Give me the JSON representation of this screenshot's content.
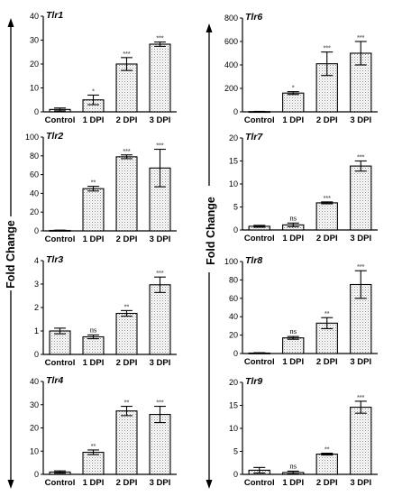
{
  "figure": {
    "side_labels": [
      "Fold Change",
      "Fold Change"
    ]
  },
  "chart_data": [
    {
      "type": "bar",
      "title": "Tlr1",
      "categories": [
        "Control",
        "1 DPI",
        "2 DPI",
        "3 DPI"
      ],
      "values": [
        1,
        5,
        20,
        28.3
      ],
      "errors": [
        0.6,
        2,
        2.7,
        0.9
      ],
      "significance": [
        "",
        "*",
        "***",
        "***"
      ],
      "ylim": [
        0,
        40
      ],
      "yticks": [
        0,
        10,
        20,
        30,
        40
      ]
    },
    {
      "type": "bar",
      "title": "Tlr2",
      "categories": [
        "Control",
        "1 DPI",
        "2 DPI",
        "3 DPI"
      ],
      "values": [
        0.5,
        45,
        79,
        67
      ],
      "errors": [
        0.3,
        2.5,
        2,
        20
      ],
      "significance": [
        "",
        "**",
        "***",
        "***"
      ],
      "ylim": [
        0,
        100
      ],
      "yticks": [
        0,
        20,
        40,
        60,
        80,
        100
      ]
    },
    {
      "type": "bar",
      "title": "Tlr3",
      "categories": [
        "Control",
        "1 DPI",
        "2 DPI",
        "3 DPI"
      ],
      "values": [
        1.0,
        0.75,
        1.75,
        2.97
      ],
      "errors": [
        0.12,
        0.08,
        0.12,
        0.33
      ],
      "significance": [
        "",
        "ns",
        "**",
        "***"
      ],
      "ylim": [
        0,
        4
      ],
      "yticks": [
        0,
        1,
        2,
        3,
        4
      ]
    },
    {
      "type": "bar",
      "title": "Tlr4",
      "categories": [
        "Control",
        "1 DPI",
        "2 DPI",
        "3 DPI"
      ],
      "values": [
        1,
        9.5,
        27.3,
        25.8
      ],
      "errors": [
        0.5,
        1,
        2,
        3.5
      ],
      "significance": [
        "",
        "**",
        "**",
        "***"
      ],
      "ylim": [
        0,
        40
      ],
      "yticks": [
        0,
        10,
        20,
        30,
        40
      ]
    },
    {
      "type": "bar",
      "title": "Tlr6",
      "categories": [
        "Control",
        "1 DPI",
        "2 DPI",
        "3 DPI"
      ],
      "values": [
        2,
        160,
        410,
        500
      ],
      "errors": [
        2,
        12,
        100,
        100
      ],
      "significance": [
        "",
        "*",
        "***",
        "***"
      ],
      "ylim": [
        0,
        800
      ],
      "yticks": [
        0,
        200,
        400,
        600,
        800
      ]
    },
    {
      "type": "bar",
      "title": "Tlr7",
      "categories": [
        "Control",
        "1 DPI",
        "2 DPI",
        "3 DPI"
      ],
      "values": [
        0.8,
        1.1,
        5.9,
        13.9
      ],
      "errors": [
        0.2,
        0.4,
        0.2,
        1.1
      ],
      "significance": [
        "",
        "ns",
        "***",
        "***"
      ],
      "ylim": [
        0,
        20
      ],
      "yticks": [
        0,
        5,
        10,
        15,
        20
      ]
    },
    {
      "type": "bar",
      "title": "Tlr8",
      "categories": [
        "Control",
        "1 DPI",
        "2 DPI",
        "3 DPI"
      ],
      "values": [
        0.5,
        17,
        33,
        75
      ],
      "errors": [
        0.4,
        1.5,
        6,
        15
      ],
      "significance": [
        "",
        "ns",
        "**",
        "***"
      ],
      "ylim": [
        0,
        100
      ],
      "yticks": [
        0,
        20,
        40,
        60,
        80,
        100
      ]
    },
    {
      "type": "bar",
      "title": "Tlr9",
      "categories": [
        "Control",
        "1 DPI",
        "2 DPI",
        "3 DPI"
      ],
      "values": [
        0.9,
        0.4,
        4.4,
        14.6
      ],
      "errors": [
        0.6,
        0.3,
        0.2,
        1.3
      ],
      "significance": [
        "",
        "ns",
        "**",
        "***"
      ],
      "ylim": [
        0,
        20
      ],
      "yticks": [
        0,
        5,
        10,
        15,
        20
      ]
    }
  ]
}
